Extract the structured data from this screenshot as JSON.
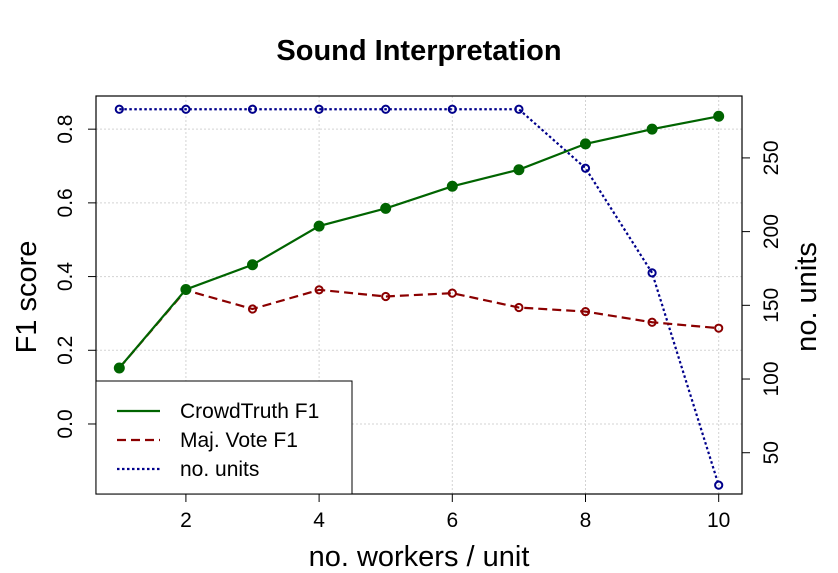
{
  "chart_data": {
    "type": "line",
    "title": "Sound Interpretation",
    "xlabel": "no. workers / unit",
    "ylabel": "F1 score",
    "y2label": "no. units",
    "x": [
      1,
      2,
      3,
      4,
      5,
      6,
      7,
      8,
      9,
      10
    ],
    "xlim": [
      0.65,
      10.35
    ],
    "ylim": [
      -0.19,
      0.89
    ],
    "y2lim": [
      22,
      292
    ],
    "xticks": [
      "2",
      "4",
      "6",
      "8",
      "10"
    ],
    "yticks": [
      "0.0",
      "0.2",
      "0.4",
      "0.6",
      "0.8"
    ],
    "y2ticks": [
      "50",
      "100",
      "150",
      "200",
      "250"
    ],
    "grid": true,
    "legend_position": "bottom-left",
    "series": [
      {
        "name": "CrowdTruth F1",
        "axis": "left",
        "color": "#006400",
        "style": "solid",
        "marker": "filled-circle",
        "values": [
          0.152,
          0.365,
          0.432,
          0.537,
          0.585,
          0.645,
          0.69,
          0.76,
          0.8,
          0.835
        ]
      },
      {
        "name": "Maj. Vote F1",
        "axis": "left",
        "color": "#8b0000",
        "style": "dashed",
        "marker": "open-circle",
        "values": [
          0.152,
          0.363,
          0.312,
          0.364,
          0.346,
          0.355,
          0.316,
          0.305,
          0.276,
          0.26
        ]
      },
      {
        "name": "no. units",
        "axis": "right",
        "color": "#00008b",
        "style": "dotted",
        "marker": "open-circle",
        "values": [
          283,
          283,
          283,
          283,
          283,
          283,
          283,
          243,
          172,
          28
        ]
      }
    ]
  }
}
